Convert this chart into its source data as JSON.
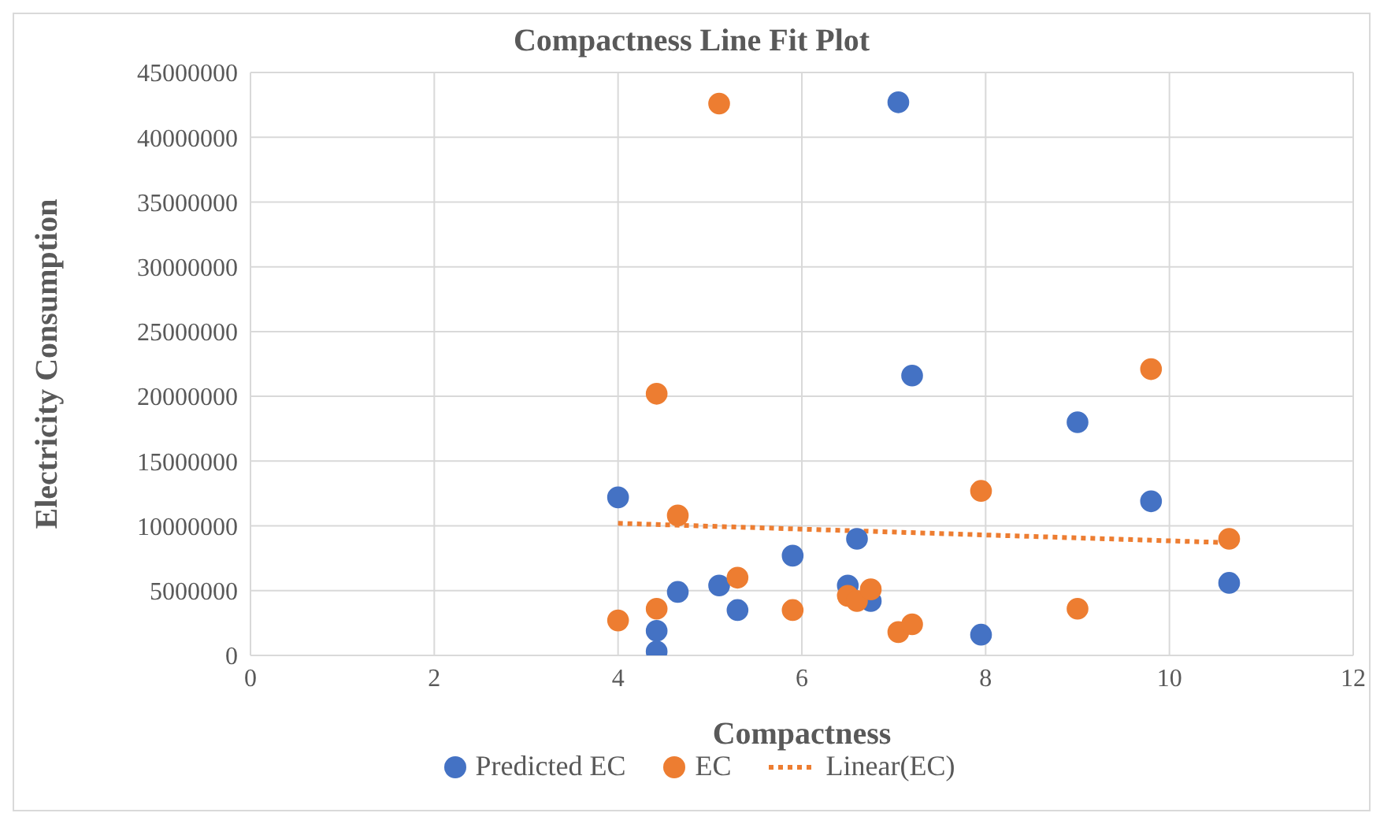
{
  "chart_data": {
    "type": "scatter",
    "title": "Compactness Line Fit Plot",
    "xlabel": "Compactness",
    "ylabel": "Electricity Consumption",
    "xlim": [
      0,
      12
    ],
    "xticks": [
      0,
      2,
      4,
      6,
      8,
      10,
      12
    ],
    "ylim": [
      0,
      45000000
    ],
    "yticks": [
      0,
      5000000,
      10000000,
      15000000,
      20000000,
      25000000,
      30000000,
      35000000,
      40000000,
      45000000
    ],
    "grid": true,
    "legend": "bottom",
    "marker": "circle",
    "x": [
      4.0,
      4.42,
      4.42,
      4.65,
      5.1,
      5.3,
      5.9,
      6.5,
      6.6,
      6.75,
      7.05,
      7.2,
      7.95,
      9.0,
      9.8,
      10.65
    ],
    "series": [
      {
        "name": "Predicted EC",
        "color": "#4472c4",
        "values": [
          12200000,
          1900000,
          300000,
          4900000,
          5400000,
          3500000,
          7700000,
          5400000,
          9000000,
          4200000,
          42700000,
          21600000,
          1600000,
          18000000,
          11900000,
          5600000
        ]
      },
      {
        "name": "EC",
        "color": "#ed7d31",
        "values": [
          2700000,
          3600000,
          20200000,
          10800000,
          42600000,
          6000000,
          3500000,
          4600000,
          4200000,
          5100000,
          1800000,
          2400000,
          12700000,
          3600000,
          22100000,
          9000000
        ]
      },
      {
        "name": "Linear(EC)",
        "type": "line",
        "color": "#ed7d31",
        "x": [
          4.0,
          10.65
        ],
        "values": [
          10200000,
          8700000
        ],
        "marker": "none",
        "line_style": "dotted"
      }
    ]
  }
}
